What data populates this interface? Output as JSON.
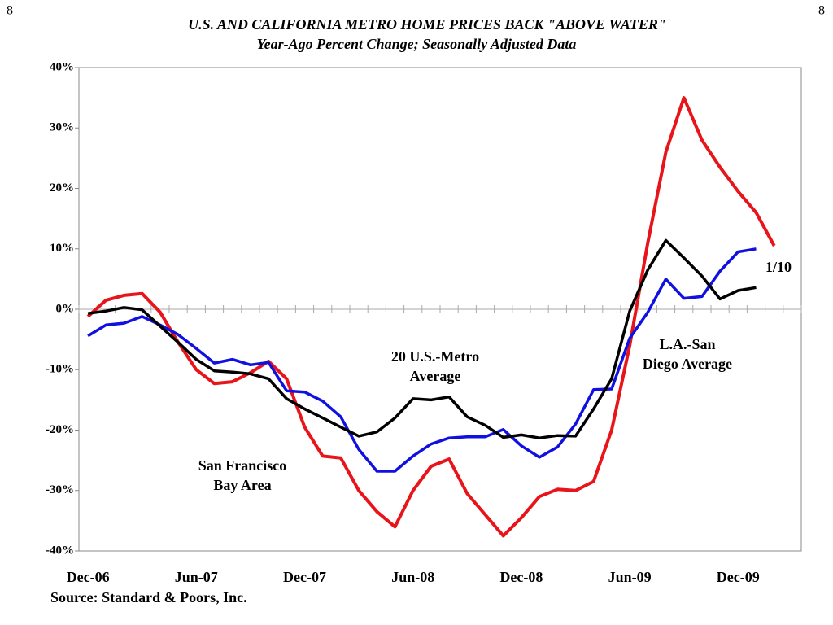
{
  "page_number": "8",
  "chart_data": {
    "type": "line",
    "title": "U.S. AND CALIFORNIA METRO HOME PRICES BACK \"ABOVE WATER\"",
    "subtitle": "Year-Ago Percent Change; Seasonally Adjusted Data",
    "source": "Source: Standard & Poors, Inc.",
    "categories": [
      "Dec-06",
      null,
      null,
      null,
      null,
      null,
      "Jun-07",
      null,
      null,
      null,
      null,
      null,
      "Dec-07",
      null,
      null,
      null,
      null,
      null,
      "Jun-08",
      null,
      null,
      null,
      null,
      null,
      "Dec-08",
      null,
      null,
      null,
      null,
      null,
      "Jun-09",
      null,
      null,
      null,
      null,
      null,
      "Dec-09",
      null,
      null,
      null
    ],
    "ylim": [
      -40,
      40
    ],
    "yticks": [
      {
        "value": -40,
        "label": "-40%"
      },
      {
        "value": -30,
        "label": "-30%"
      },
      {
        "value": -20,
        "label": "-20%"
      },
      {
        "value": -10,
        "label": "-10%"
      },
      {
        "value": 0,
        "label": "0%"
      },
      {
        "value": 10,
        "label": "10%"
      },
      {
        "value": 20,
        "label": "20%"
      },
      {
        "value": 30,
        "label": "30%"
      },
      {
        "value": 40,
        "label": "40%"
      }
    ],
    "series": [
      {
        "name": "San Francisco Bay Area",
        "color": "#e8141a",
        "values": [
          -1.2,
          1.5,
          2.3,
          2.6,
          -0.5,
          -5.5,
          -10,
          -12.3,
          -12,
          -10.5,
          -8.6,
          -11.5,
          -19.5,
          -24.3,
          -24.6,
          -30,
          -33.5,
          -36,
          -30,
          -26,
          -24.8,
          -30.5,
          -34,
          -37.5,
          -34.5,
          -31,
          -29.8,
          -30,
          -28.5,
          -20,
          -6,
          11,
          26,
          35,
          28,
          23.5,
          19.5,
          16,
          10.5,
          null
        ]
      },
      {
        "name": "L.A.-San Diego Average",
        "color": "#1010e0",
        "values": [
          -4.4,
          -2.6,
          -2.3,
          -1.2,
          -2.6,
          -4.2,
          -6.5,
          -8.9,
          -8.3,
          -9.2,
          -8.8,
          -13.5,
          -13.7,
          -15.2,
          -17.8,
          -23.2,
          -26.8,
          -26.8,
          -24.3,
          -22.3,
          -21.3,
          -21.1,
          -21.1,
          -19.9,
          -22.6,
          -24.5,
          -22.8,
          -19,
          -13.3,
          -13.2,
          -4.8,
          -0.5,
          5,
          1.8,
          2.1,
          6.3,
          9.5,
          10,
          null,
          null
        ]
      },
      {
        "name": "20 U.S.-Metro Average",
        "color": "#000000",
        "values": [
          -0.7,
          -0.3,
          0.3,
          -0.1,
          -2.8,
          -5.5,
          -8.3,
          -10.2,
          -10.4,
          -10.7,
          -11.5,
          -14.8,
          -16.5,
          -18,
          -19.5,
          -21,
          -20.3,
          -18,
          -14.8,
          -15,
          -14.5,
          -17.8,
          -19.2,
          -21.2,
          -20.8,
          -21.3,
          -20.9,
          -21,
          -16.5,
          -11.5,
          -0.3,
          6.5,
          11.4,
          8.5,
          5.5,
          1.7,
          3.1,
          3.6,
          null,
          null
        ]
      }
    ],
    "annotations": [
      {
        "lines": [
          "20 U.S.-Metro",
          "Average"
        ]
      },
      {
        "lines": [
          "L.A.-San",
          "Diego Average"
        ]
      },
      {
        "lines": [
          "San Francisco",
          "Bay Area"
        ]
      },
      {
        "lines": [
          "1/10"
        ]
      }
    ]
  }
}
